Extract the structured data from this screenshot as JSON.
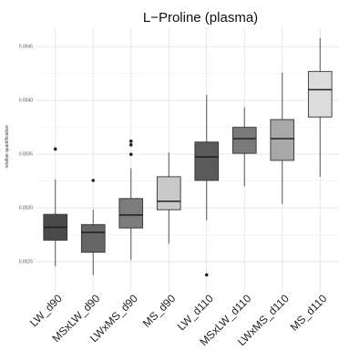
{
  "chart_data": {
    "type": "box",
    "title": "L−Proline (plasma)",
    "xlabel": "",
    "ylabel": "relative quantification",
    "ylim": [
      0.00222,
      0.00468
    ],
    "yticks": [
      0.0025,
      0.003,
      0.0035,
      0.004,
      0.0045
    ],
    "ytick_labels": [
      "0.0025",
      "0.0030",
      "0.0035",
      "0.0040",
      "0.0045"
    ],
    "grid": true,
    "background": "#ffffff",
    "categories": [
      "LW_d90",
      "MSxLW_d90",
      "LWxMS_d90",
      "MS_d90",
      "LW_d110",
      "MSxLW_d110",
      "LWxMS_d110",
      "MS_d110"
    ],
    "fill_colors": [
      "#4a4a4a",
      "#666666",
      "#7c7c7c",
      "#c9c9c9",
      "#5a5a5a",
      "#7a7a7a",
      "#a8a8a8",
      "#dcdcdc"
    ],
    "boxes": [
      {
        "whisker_low": 0.002457,
        "q1": 0.0027,
        "median": 0.00282,
        "q3": 0.00294,
        "whisker_high": 0.003264,
        "outliers": [
          0.003548
        ]
      },
      {
        "whisker_low": 0.002376,
        "q1": 0.002587,
        "median": 0.002773,
        "q3": 0.002845,
        "whisker_high": 0.002983,
        "outliers": [
          0.003256
        ]
      },
      {
        "whisker_low": 0.002514,
        "q1": 0.002813,
        "median": 0.002934,
        "q3": 0.003087,
        "whisker_high": 0.003369,
        "outliers": [
          0.003498,
          0.003587,
          0.003621
        ]
      },
      {
        "whisker_low": 0.002667,
        "q1": 0.002983,
        "median": 0.003062,
        "q3": 0.00329,
        "whisker_high": 0.003515,
        "outliers": []
      },
      {
        "whisker_low": 0.002885,
        "q1": 0.003256,
        "median": 0.003474,
        "q3": 0.003613,
        "whisker_high": 0.00405,
        "outliers": [
          0.002377
        ]
      },
      {
        "whisker_low": 0.0032,
        "q1": 0.003508,
        "median": 0.003644,
        "q3": 0.00375,
        "whisker_high": 0.003935,
        "outliers": []
      },
      {
        "whisker_low": 0.003034,
        "q1": 0.003442,
        "median": 0.003644,
        "q3": 0.003822,
        "whisker_high": 0.00426,
        "outliers": []
      },
      {
        "whisker_low": 0.00329,
        "q1": 0.003846,
        "median": 0.0041,
        "q3": 0.00427,
        "whisker_high": 0.00458,
        "outliers": []
      }
    ]
  }
}
